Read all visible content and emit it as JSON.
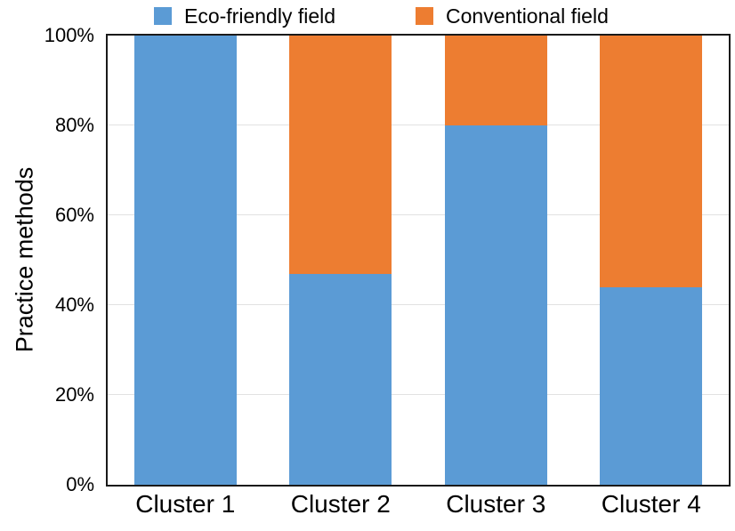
{
  "figure": {
    "background": "#ffffff",
    "axis_color": "#1a1a1a",
    "gridline_color": "#e2e2e2"
  },
  "legend": {
    "items": [
      {
        "label": "Eco-friendly field",
        "color": "#5B9BD5"
      },
      {
        "label": "Conventional field",
        "color": "#ED7D31"
      }
    ]
  },
  "y_axis": {
    "title": "Practice methods",
    "tick_labels": [
      "0%",
      "20%",
      "40%",
      "60%",
      "80%",
      "100%"
    ],
    "tick_values": [
      0,
      20,
      40,
      60,
      80,
      100
    ]
  },
  "x_axis": {
    "categories": [
      "Cluster 1",
      "Cluster 2",
      "Cluster 3",
      "Cluster 4"
    ]
  },
  "chart_data": {
    "type": "bar",
    "stacked": true,
    "categories": [
      "Cluster 1",
      "Cluster 2",
      "Cluster 3",
      "Cluster 4"
    ],
    "series": [
      {
        "name": "Eco-friendly field",
        "color": "#5B9BD5",
        "values": [
          100,
          47,
          80,
          44
        ]
      },
      {
        "name": "Conventional field",
        "color": "#ED7D31",
        "values": [
          0,
          53,
          20,
          56
        ]
      }
    ],
    "title": "",
    "xlabel": "",
    "ylabel": "Practice methods",
    "ylim": [
      0,
      100
    ],
    "ytick_step": 20,
    "yticklabel_format": "percent",
    "grid": "horizontal",
    "legend_position": "top"
  }
}
